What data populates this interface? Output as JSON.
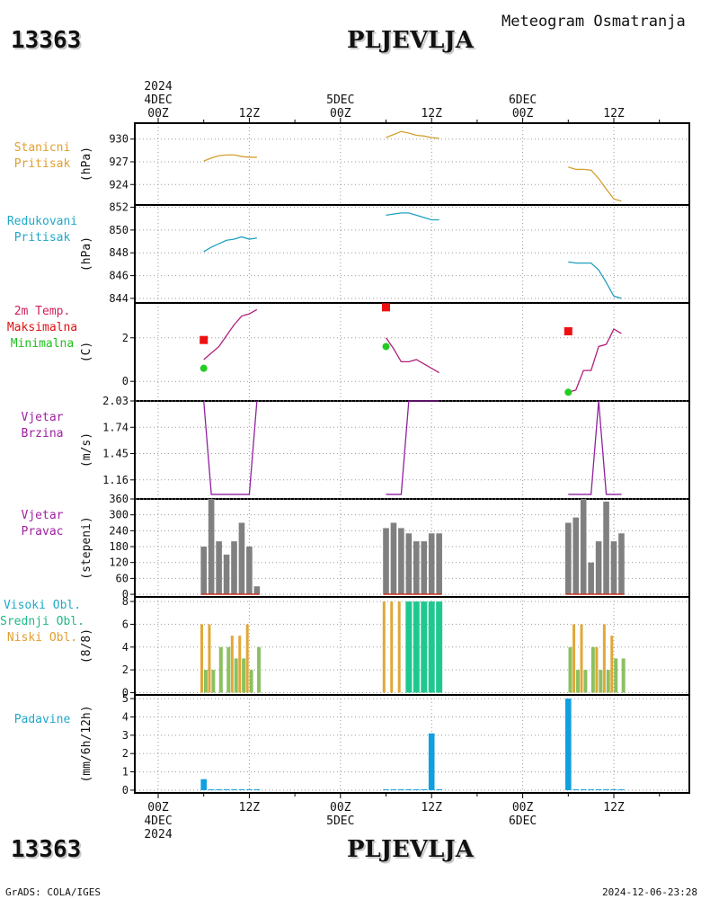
{
  "header": {
    "station_id": "13363",
    "station_name": "PLJEVLJA",
    "title": "Meteogram Osmatranja"
  },
  "footer": {
    "left": "GrADS: COLA/IGES",
    "right": "2024-12-06-23:28"
  },
  "time_axis": {
    "top": [
      {
        "hour": 0,
        "lines": [
          "2024",
          "4DEC",
          "00Z"
        ]
      },
      {
        "hour": 12,
        "lines": [
          "12Z"
        ]
      },
      {
        "hour": 24,
        "lines": [
          "5DEC",
          "00Z"
        ]
      },
      {
        "hour": 36,
        "lines": [
          "12Z"
        ]
      },
      {
        "hour": 48,
        "lines": [
          "6DEC",
          "00Z"
        ]
      },
      {
        "hour": 60,
        "lines": [
          "12Z"
        ]
      }
    ],
    "bottom": [
      {
        "hour": 0,
        "lines": [
          "00Z",
          "4DEC",
          "2024"
        ]
      },
      {
        "hour": 12,
        "lines": [
          "12Z"
        ]
      },
      {
        "hour": 24,
        "lines": [
          "00Z",
          "5DEC"
        ]
      },
      {
        "hour": 36,
        "lines": [
          "12Z"
        ]
      },
      {
        "hour": 48,
        "lines": [
          "00Z",
          "6DEC"
        ]
      },
      {
        "hour": 60,
        "lines": [
          "12Z"
        ]
      }
    ]
  },
  "chart_data": [
    {
      "type": "line",
      "labels": [
        "Stanicni",
        "Pritisak"
      ],
      "label_colors": [
        "#e0a030",
        "#e0a030"
      ],
      "ylabel": "(hPa)",
      "ylim": [
        921.3,
        932.1
      ],
      "yticks": [
        930,
        927,
        924
      ],
      "ytick_labels": [
        "930",
        "927",
        "924"
      ],
      "color": "#d4a030",
      "series": [
        {
          "x": [
            6,
            7,
            8,
            9,
            10,
            11,
            12,
            13
          ],
          "y": [
            927.1,
            927.5,
            927.8,
            927.9,
            927.9,
            927.7,
            927.6,
            927.6
          ]
        },
        {
          "x": [
            30,
            31,
            32,
            33,
            34,
            35,
            36,
            37
          ],
          "y": [
            930.2,
            930.6,
            931.0,
            930.8,
            930.5,
            930.4,
            930.2,
            930.1
          ]
        },
        {
          "x": [
            54,
            55,
            56,
            57,
            58,
            59,
            60,
            61
          ],
          "y": [
            926.3,
            926.0,
            926.0,
            925.9,
            924.8,
            923.4,
            922.1,
            921.8
          ]
        }
      ]
    },
    {
      "type": "line",
      "labels": [
        "Redukovani",
        "Pritisak"
      ],
      "label_colors": [
        "#20a8c8",
        "#20a8c8"
      ],
      "ylabel": "(hPa)",
      "ylim": [
        843.6,
        852.2
      ],
      "yticks": [
        852,
        850,
        848,
        846,
        844
      ],
      "ytick_labels": [
        "852",
        "850",
        "848",
        "846",
        "844"
      ],
      "color": "#20a0c0",
      "series": [
        {
          "x": [
            6,
            7,
            8,
            9,
            10,
            11,
            12,
            13
          ],
          "y": [
            848.1,
            848.5,
            848.8,
            849.1,
            849.2,
            849.4,
            849.2,
            849.3
          ]
        },
        {
          "x": [
            30,
            31,
            32,
            33,
            34,
            35,
            36,
            37
          ],
          "y": [
            851.3,
            851.4,
            851.5,
            851.5,
            851.3,
            851.1,
            850.9,
            850.9
          ]
        },
        {
          "x": [
            54,
            55,
            56,
            57,
            58,
            59,
            60,
            61
          ],
          "y": [
            847.2,
            847.1,
            847.1,
            847.1,
            846.5,
            845.4,
            844.2,
            844.0
          ]
        }
      ]
    },
    {
      "type": "line",
      "labels": [
        "2m Temp.",
        "Maksimalna",
        "Minimalna"
      ],
      "label_colors": [
        "#d02060",
        "#e01010",
        "#20c020"
      ],
      "ylabel": "(C)",
      "ylim": [
        -0.9,
        3.6
      ],
      "yticks": [
        2,
        0
      ],
      "ytick_labels": [
        "2",
        "0"
      ],
      "color": "#b0207a",
      "series": [
        {
          "x": [
            6,
            7,
            8,
            9,
            10,
            11,
            12,
            13
          ],
          "y": [
            1.0,
            1.3,
            1.6,
            2.1,
            2.6,
            3.0,
            3.1,
            3.3
          ]
        },
        {
          "x": [
            30,
            31,
            32,
            33,
            34,
            35,
            36,
            37
          ],
          "y": [
            2.0,
            1.5,
            0.9,
            0.9,
            1.0,
            0.8,
            0.6,
            0.4
          ]
        },
        {
          "x": [
            54,
            55,
            56,
            57,
            58,
            59,
            60,
            61
          ],
          "y": [
            -0.5,
            -0.4,
            0.5,
            0.5,
            1.6,
            1.7,
            2.4,
            2.2
          ]
        }
      ],
      "max_points": {
        "x": [
          6,
          30,
          54
        ],
        "y": [
          1.9,
          3.4,
          2.3
        ],
        "color": "#ee1111"
      },
      "min_points": {
        "x": [
          6,
          30,
          54
        ],
        "y": [
          0.6,
          1.6,
          -0.5
        ],
        "color": "#22cc22"
      }
    },
    {
      "type": "line",
      "labels": [
        "Vjetar",
        "Brzina"
      ],
      "label_colors": [
        "#a020a0",
        "#a020a0"
      ],
      "ylabel": "(m/s)",
      "ylim": [
        0.95,
        2.03
      ],
      "yticks": [
        2.03,
        1.74,
        1.45,
        1.16
      ],
      "ytick_labels": [
        "2.03",
        "1.74",
        "1.45",
        "1.16"
      ],
      "color": "#9020a0",
      "series": [
        {
          "x": [
            6,
            7,
            8,
            9,
            10,
            11,
            12,
            13
          ],
          "y": [
            2.03,
            1.0,
            1.0,
            1.0,
            1.0,
            1.0,
            1.0,
            2.03
          ]
        },
        {
          "x": [
            30,
            31,
            32,
            33,
            34,
            35,
            36,
            37
          ],
          "y": [
            1.0,
            1.0,
            1.0,
            2.03,
            2.03,
            2.03,
            2.03,
            2.03
          ]
        },
        {
          "x": [
            54,
            55,
            56,
            57,
            58,
            59,
            60,
            61
          ],
          "y": [
            1.0,
            1.0,
            1.0,
            1.0,
            2.03,
            1.0,
            1.0,
            1.0
          ]
        }
      ]
    },
    {
      "type": "bar",
      "labels": [
        "Vjetar",
        "Pravac"
      ],
      "label_colors": [
        "#a020a0",
        "#a020a0"
      ],
      "ylabel": "(stepeni)",
      "ylim": [
        -10,
        360
      ],
      "yticks": [
        360,
        300,
        240,
        180,
        120,
        60,
        0
      ],
      "ytick_labels": [
        "360",
        "300",
        "240",
        "180",
        "120",
        "60",
        "0"
      ],
      "color": "#808080",
      "baseline_color": "#cc3322",
      "x": [
        6,
        7,
        8,
        9,
        10,
        11,
        12,
        13,
        30,
        31,
        32,
        33,
        34,
        35,
        36,
        37,
        54,
        55,
        56,
        57,
        58,
        59,
        60,
        61
      ],
      "values": [
        180,
        360,
        200,
        150,
        200,
        270,
        180,
        30,
        250,
        270,
        250,
        230,
        200,
        200,
        230,
        230,
        270,
        290,
        360,
        120,
        200,
        350,
        200,
        230
      ]
    },
    {
      "type": "bar",
      "labels": [
        "Visoki Obl.",
        "Srednji Obl.",
        "Niski Obl."
      ],
      "label_colors": [
        "#20a8c8",
        "#20b888",
        "#e0a030"
      ],
      "ylabel": "(8/8)",
      "ylim": [
        -0.2,
        8.4
      ],
      "yticks": [
        8,
        6,
        4,
        2,
        0
      ],
      "ytick_labels": [
        "8",
        "6",
        "4",
        "2",
        "0"
      ],
      "x": [
        6,
        7,
        8,
        9,
        10,
        11,
        12,
        13,
        30,
        31,
        32,
        33,
        34,
        35,
        36,
        37,
        54,
        55,
        56,
        57,
        58,
        59,
        60,
        61
      ],
      "series": [
        {
          "name": "Niski Obl.",
          "color": "#e0a838",
          "values": [
            6,
            6,
            0,
            0,
            5,
            5,
            6,
            0,
            8,
            8,
            8,
            0,
            0,
            0,
            0,
            0,
            0,
            6,
            6,
            0,
            4,
            6,
            5,
            0
          ]
        },
        {
          "name": "Srednji Obl.",
          "color": "#20c890",
          "values": [
            0,
            0,
            0,
            0,
            0,
            0,
            0,
            0,
            0,
            0,
            0,
            8,
            8,
            8,
            8,
            8,
            0,
            0,
            0,
            0,
            0,
            0,
            0,
            0
          ]
        },
        {
          "name": "Visoki Obl.",
          "color": "#8cc060",
          "values": [
            2,
            2,
            4,
            4,
            3,
            3,
            2,
            4,
            0,
            0,
            0,
            0,
            0,
            0,
            0,
            0,
            4,
            2,
            2,
            4,
            2,
            2,
            3,
            3
          ]
        }
      ]
    },
    {
      "type": "bar",
      "labels": [
        "Padavine"
      ],
      "label_colors": [
        "#20a8c8"
      ],
      "ylabel": "(mm/6h/12h)",
      "ylim": [
        -0.15,
        5.2
      ],
      "yticks": [
        5,
        4,
        3,
        2,
        1,
        0
      ],
      "ytick_labels": [
        "5",
        "4",
        "3",
        "2",
        "1",
        "0"
      ],
      "color": "#10a0e0",
      "x": [
        6,
        7,
        8,
        9,
        10,
        11,
        12,
        13,
        30,
        31,
        32,
        33,
        34,
        35,
        36,
        37,
        54,
        55,
        56,
        57,
        58,
        59,
        60,
        61
      ],
      "values": [
        0.6,
        0.05,
        0.05,
        0.05,
        0.05,
        0.05,
        0.05,
        0.05,
        0.05,
        0.05,
        0.05,
        0.05,
        0.05,
        0.05,
        3.1,
        0.05,
        5.0,
        0.05,
        0.05,
        0.05,
        0.05,
        0.05,
        0.05,
        0.05
      ]
    }
  ]
}
